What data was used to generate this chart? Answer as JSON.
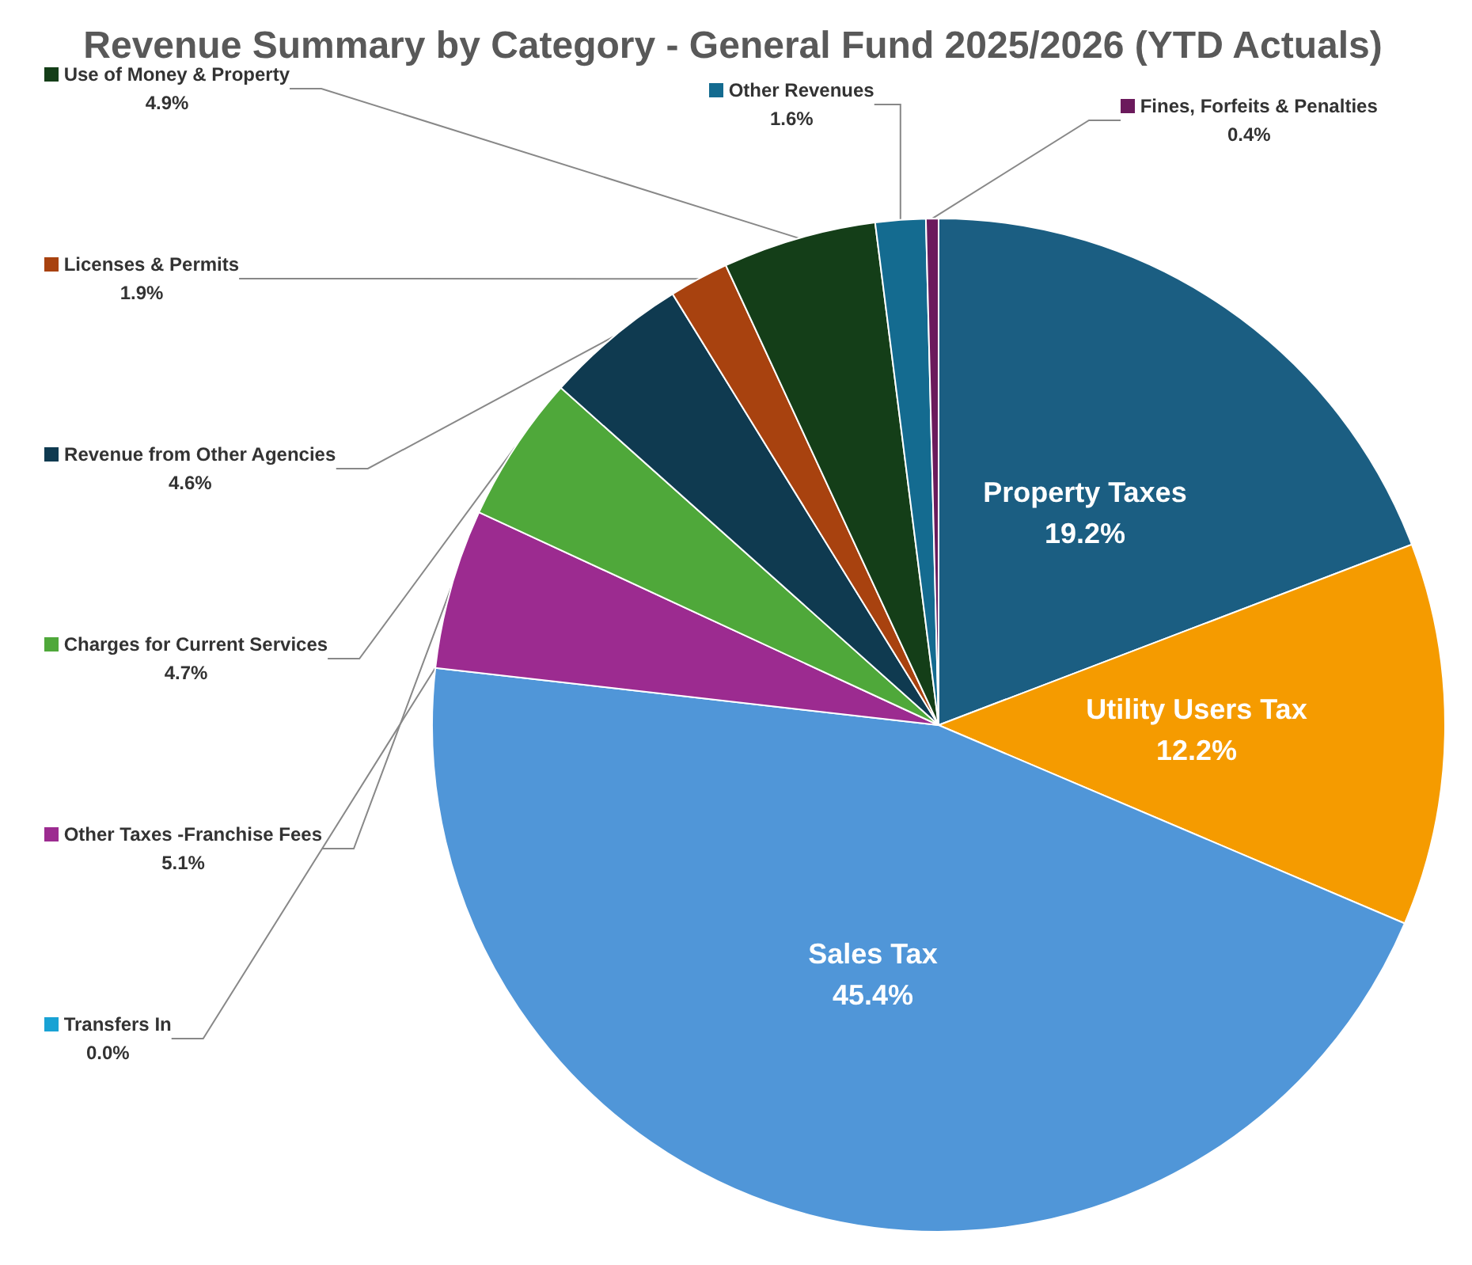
{
  "chart_data": {
    "type": "pie",
    "title": "Revenue Summary by Category - General Fund 2025/2026 (YTD Actuals)",
    "categories": [
      "Property Taxes",
      "Utility Users Tax",
      "Sales Tax",
      "Transfers In",
      "Other Taxes -Franchise Fees",
      "Charges for Current Services",
      "Revenue from Other Agencies",
      "Licenses & Permits",
      "Use of Money & Property",
      "Other Revenues",
      "Fines, Forfeits & Penalties"
    ],
    "values": [
      19.2,
      12.2,
      45.4,
      0.0,
      5.1,
      4.7,
      4.6,
      1.9,
      4.9,
      1.6,
      0.4
    ],
    "value_labels": [
      "19.2%",
      "12.2%",
      "45.4%",
      "0.0%",
      "5.1%",
      "4.7%",
      "4.6%",
      "1.9%",
      "4.9%",
      "1.6%",
      "0.4%"
    ],
    "colors": [
      "#1b5e82",
      "#f59b00",
      "#5096d8",
      "#19a2d4",
      "#9c2b90",
      "#4fa83a",
      "#0f3a50",
      "#a8420f",
      "#143e18",
      "#146b90",
      "#6b1a5c"
    ],
    "legend": "left"
  }
}
